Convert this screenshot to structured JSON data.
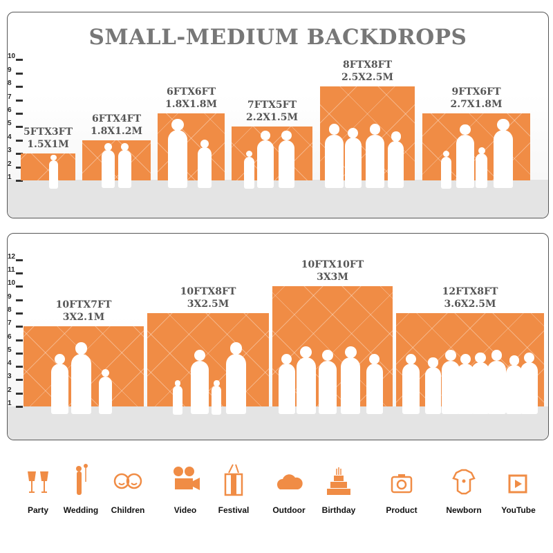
{
  "small_medium": {
    "title": "SMALL-MEDIUM BACKDROPS",
    "axis_ticks": [
      "1",
      "2",
      "3",
      "4",
      "5",
      "6",
      "7",
      "8",
      "9",
      "10"
    ],
    "sizes": [
      {
        "ft": "5FTX3FT",
        "m": "1.5X1M",
        "height_ft": 3
      },
      {
        "ft": "6FTX4FT",
        "m": "1.8X1.2M",
        "height_ft": 4
      },
      {
        "ft": "6FTX6FT",
        "m": "1.8X1.8M",
        "height_ft": 6
      },
      {
        "ft": "7FTX5FT",
        "m": "2.2X1.5M",
        "height_ft": 5
      },
      {
        "ft": "8FTX8FT",
        "m": "2.5X2.5M",
        "height_ft": 8
      },
      {
        "ft": "9FTX6FT",
        "m": "2.7X1.8M",
        "height_ft": 6
      }
    ]
  },
  "large": {
    "axis_ticks": [
      "1",
      "2",
      "3",
      "4",
      "5",
      "6",
      "7",
      "8",
      "9",
      "10",
      "11",
      "12"
    ],
    "sizes": [
      {
        "ft": "10FTX7FT",
        "m": "3X2.1M",
        "height_ft": 7
      },
      {
        "ft": "10FTX8FT",
        "m": "3X2.5M",
        "height_ft": 8
      },
      {
        "ft": "10FTX10FT",
        "m": "3X3M",
        "height_ft": 10
      },
      {
        "ft": "12FTX8FT",
        "m": "3.6X2.5M",
        "height_ft": 8
      }
    ]
  },
  "uses": [
    {
      "label": "Party",
      "icon": "champagne-glasses-icon"
    },
    {
      "label": "Wedding",
      "icon": "wedding-couple-icon"
    },
    {
      "label": "Children",
      "icon": "children-faces-icon"
    },
    {
      "label": "Video",
      "icon": "video-camera-icon"
    },
    {
      "label": "Festival",
      "icon": "gift-box-icon"
    },
    {
      "label": "Outdoor",
      "icon": "cloud-icon"
    },
    {
      "label": "Birthday",
      "icon": "birthday-cake-icon"
    },
    {
      "label": "Product",
      "icon": "camera-icon"
    },
    {
      "label": "Newborn",
      "icon": "baby-onesie-icon"
    },
    {
      "label": "YouTube",
      "icon": "play-button-icon"
    }
  ],
  "colors": {
    "accent": "#f08c45",
    "title": "#777777",
    "ground": "#e4e4e4"
  }
}
